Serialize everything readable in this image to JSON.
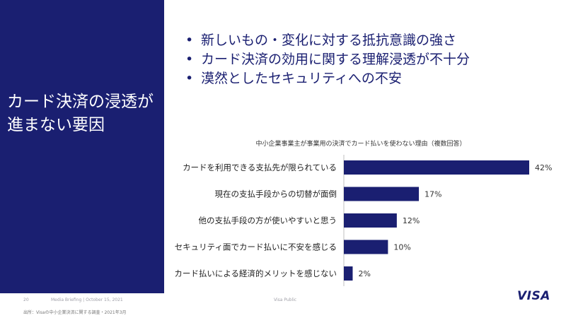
{
  "slide": {
    "title": "カード決済の浸透が\n進まない要因",
    "bullets": [
      "新しいもの・変化に対する抵抗意識の強さ",
      "カード決済の効用に関する理解浸透が不十分",
      "漠然としたセキュリティへの不安"
    ]
  },
  "chart_data": {
    "type": "bar",
    "orientation": "horizontal",
    "title": "中小企業事業主が事業用の決済でカード払いを使わない理由（複数回答）",
    "categories": [
      "カードを利用できる支払先が限られている",
      "現在の支払手段からの切替が面倒",
      "他の支払手段の方が使いやすいと思う",
      "セキュリティ面でカード払いに不安を感じる",
      "カード払いによる経済的メリットを感じない"
    ],
    "values": [
      42,
      17,
      12,
      10,
      2
    ],
    "value_labels": [
      "42%",
      "17%",
      "12%",
      "10%",
      "2%"
    ],
    "xlim": [
      0,
      42
    ],
    "grid": false,
    "bar_color": "#1a1f71"
  },
  "footer": {
    "page": "20",
    "briefing": "Media Briefing  |  October 15, 2021",
    "classification": "Visa Public",
    "source": "出所：Visaの中小企業決済に関する調査・2021年3月",
    "logo": "VISA"
  },
  "colors": {
    "brand": "#1a1f71",
    "background": "#ffffff"
  }
}
